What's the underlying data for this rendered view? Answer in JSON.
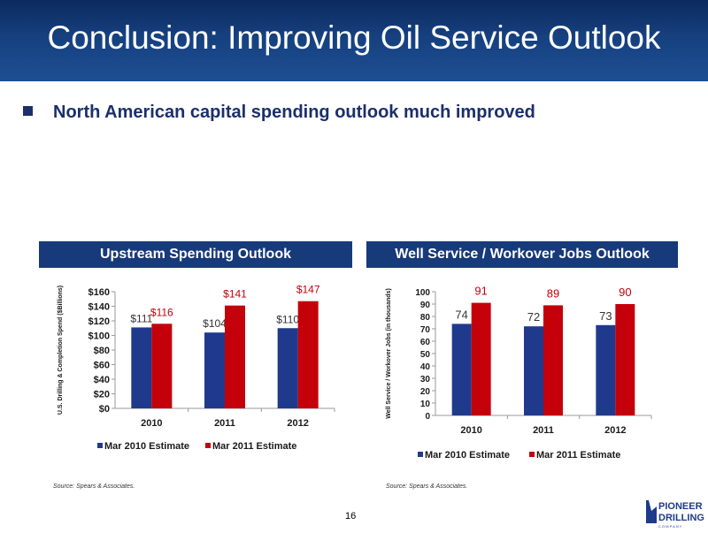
{
  "slide": {
    "title": "Conclusion: Improving Oil Service Outlook",
    "bullet": "North American capital spending outlook much improved",
    "page_number": "16",
    "colors": {
      "header_blue": "#173a7a",
      "series_2010": "#1f3a8c",
      "series_2011": "#c4000a"
    }
  },
  "panels": {
    "left_title": "Upstream Spending Outlook",
    "right_title": "Well Service / Workover Jobs Outlook",
    "left_source": "Source: Spears & Associates.",
    "right_source": "Source: Spears & Associates."
  },
  "logo": {
    "line1": "PIONEER",
    "line2": "DRILLING",
    "line3": "C O M P A N Y"
  },
  "chart_data": [
    {
      "type": "bar",
      "title": "Upstream Spending Outlook",
      "ylabel": "U.S. Drilling & Completion Spend ($Billions)",
      "categories": [
        "2010",
        "2011",
        "2012"
      ],
      "series": [
        {
          "name": "Mar 2010 Estimate",
          "values": [
            111,
            104,
            110
          ],
          "labels": [
            "$111",
            "$104",
            "$110"
          ],
          "color": "#1f3a8c",
          "label_color": "#333333"
        },
        {
          "name": "Mar 2011 Estimate",
          "values": [
            116,
            141,
            147
          ],
          "labels": [
            "$116",
            "$141",
            "$147"
          ],
          "color": "#c4000a",
          "label_color": "#c4000a"
        }
      ],
      "yticks": [
        "$0",
        "$20",
        "$40",
        "$60",
        "$80",
        "$100",
        "$120",
        "$140",
        "$160"
      ],
      "ylim": [
        0,
        160
      ],
      "grid": false,
      "legend": "bottom"
    },
    {
      "type": "bar",
      "title": "Well Service / Workover Jobs Outlook",
      "ylabel": "Well Service / Workover Jobs (in thousands)",
      "categories": [
        "2010",
        "2011",
        "2012"
      ],
      "series": [
        {
          "name": "Mar 2010 Estimate",
          "values": [
            74,
            72,
            73
          ],
          "labels": [
            "74",
            "72",
            "73"
          ],
          "color": "#1f3a8c",
          "label_color": "#333333"
        },
        {
          "name": "Mar 2011 Estimate",
          "values": [
            91,
            89,
            90
          ],
          "labels": [
            "91",
            "89",
            "90"
          ],
          "color": "#c4000a",
          "label_color": "#c4000a"
        }
      ],
      "yticks": [
        "0",
        "10",
        "20",
        "30",
        "40",
        "50",
        "60",
        "70",
        "80",
        "90",
        "100"
      ],
      "ylim": [
        0,
        100
      ],
      "grid": false,
      "legend": "bottom"
    }
  ]
}
